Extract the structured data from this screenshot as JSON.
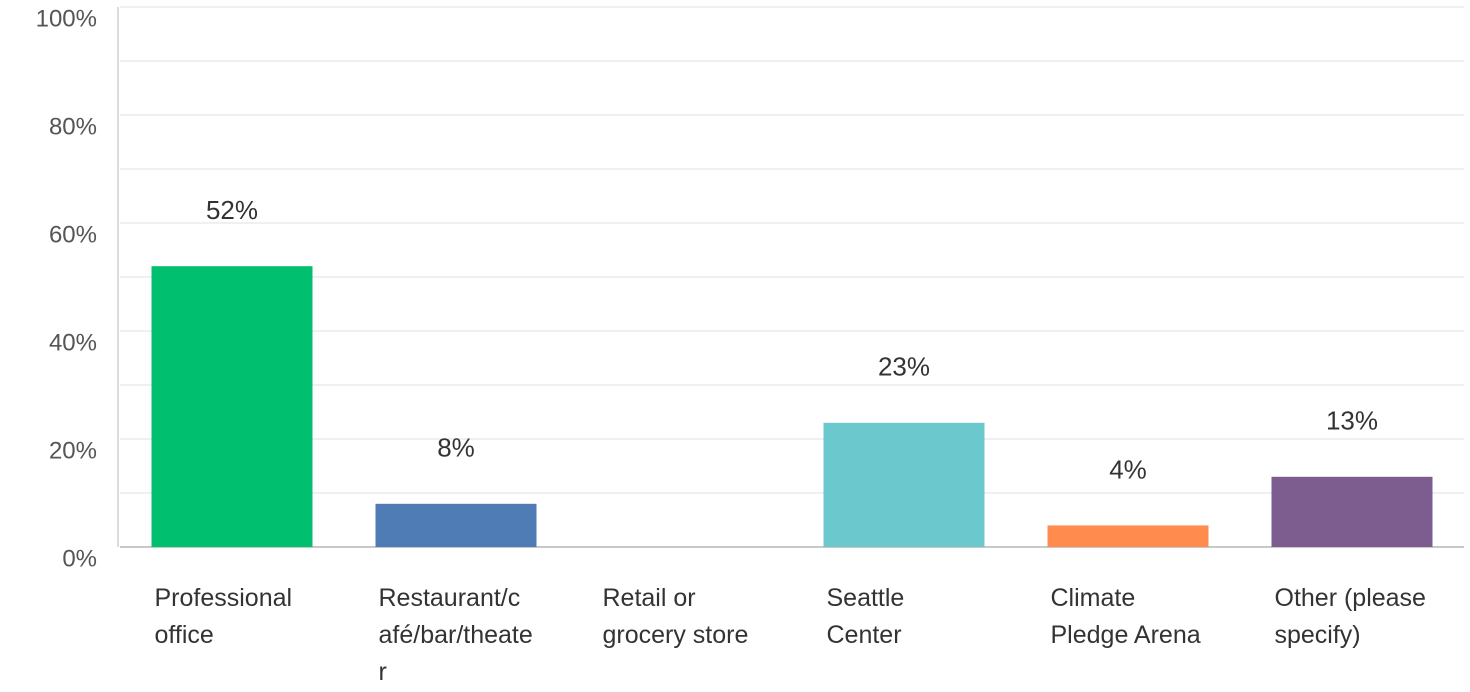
{
  "chart_data": {
    "type": "bar",
    "categories": [
      "Professional office",
      "Restaurant/café/bar/theater",
      "Retail or grocery store",
      "Seattle Center",
      "Climate Pledge Arena",
      "Other (please specify)"
    ],
    "values": [
      52,
      8,
      0,
      23,
      4,
      13
    ],
    "value_labels": [
      "52%",
      "8%",
      null,
      "23%",
      "4%",
      "13%"
    ],
    "colors": [
      "#00bf6f",
      "#507cb6",
      "#ffffff",
      "#6bc8cd",
      "#ff8b4f",
      "#7d5c8f"
    ],
    "ylim": [
      0,
      100
    ],
    "yticks": [
      {
        "value": 0,
        "label": "0%"
      },
      {
        "value": 20,
        "label": "20%"
      },
      {
        "value": 40,
        "label": "40%"
      },
      {
        "value": 60,
        "label": "60%"
      },
      {
        "value": 80,
        "label": "80%"
      },
      {
        "value": 100,
        "label": "100%"
      }
    ],
    "minor_yticks": [
      10,
      30,
      50,
      70,
      90
    ],
    "grid": true
  }
}
